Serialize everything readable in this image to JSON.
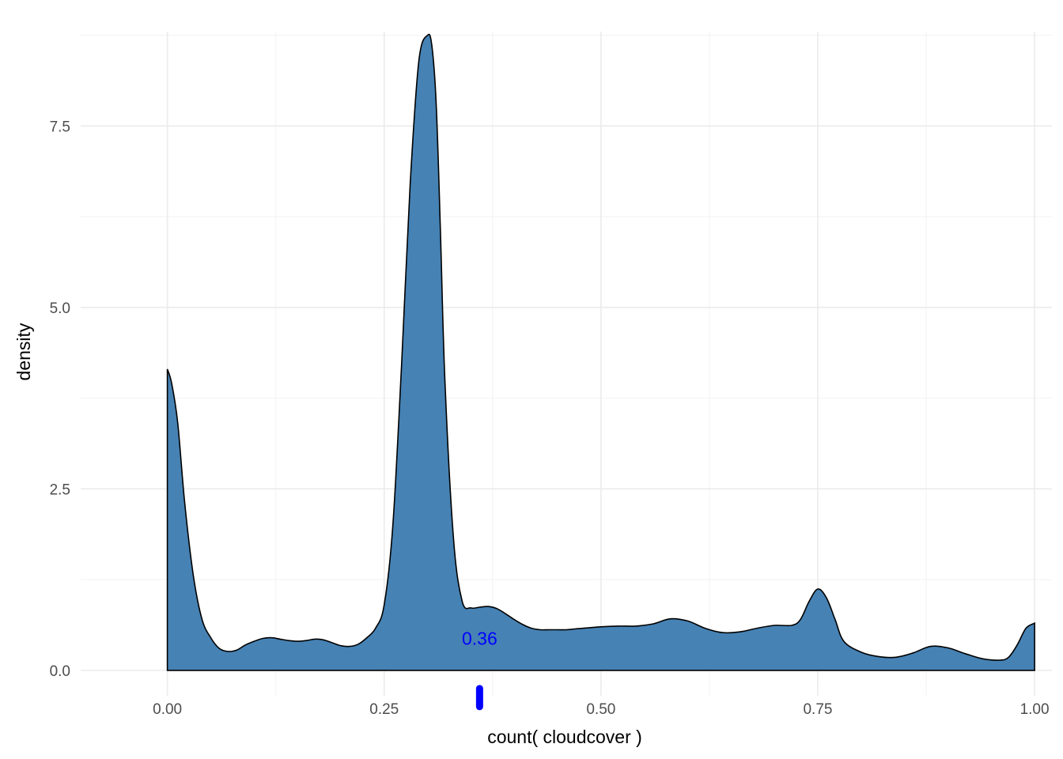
{
  "chart_data": {
    "type": "area",
    "title": "",
    "xlabel": "count( cloudcover )",
    "ylabel": "density",
    "xlim": [
      -0.1,
      1.02
    ],
    "ylim": [
      -0.35,
      8.8
    ],
    "x_ticks": [
      0.0,
      0.25,
      0.5,
      0.75,
      1.0
    ],
    "x_tick_labels": [
      "0.00",
      "0.25",
      "0.50",
      "0.75",
      "1.00"
    ],
    "y_ticks": [
      0.0,
      2.5,
      5.0,
      7.5
    ],
    "y_tick_labels": [
      "0.0",
      "2.5",
      "5.0",
      "7.5"
    ],
    "grid": true,
    "series": [
      {
        "fill": "#4682b4",
        "stroke": "#000000",
        "x": [
          0.0,
          0.005,
          0.012,
          0.02,
          0.03,
          0.04,
          0.05,
          0.06,
          0.07,
          0.08,
          0.09,
          0.1,
          0.11,
          0.12,
          0.13,
          0.14,
          0.15,
          0.16,
          0.17,
          0.18,
          0.19,
          0.2,
          0.21,
          0.22,
          0.23,
          0.24,
          0.25,
          0.26,
          0.27,
          0.28,
          0.29,
          0.3,
          0.305,
          0.31,
          0.315,
          0.32,
          0.33,
          0.34,
          0.35,
          0.36,
          0.37,
          0.38,
          0.39,
          0.4,
          0.41,
          0.42,
          0.43,
          0.44,
          0.45,
          0.46,
          0.47,
          0.48,
          0.5,
          0.52,
          0.54,
          0.56,
          0.58,
          0.6,
          0.62,
          0.64,
          0.66,
          0.68,
          0.7,
          0.72,
          0.73,
          0.74,
          0.75,
          0.76,
          0.77,
          0.78,
          0.8,
          0.82,
          0.84,
          0.86,
          0.88,
          0.9,
          0.92,
          0.94,
          0.96,
          0.97,
          0.98,
          0.99,
          1.0
        ],
        "y": [
          4.15,
          3.95,
          3.4,
          2.3,
          1.3,
          0.7,
          0.45,
          0.3,
          0.26,
          0.28,
          0.35,
          0.4,
          0.44,
          0.45,
          0.43,
          0.41,
          0.4,
          0.41,
          0.43,
          0.42,
          0.38,
          0.34,
          0.33,
          0.36,
          0.45,
          0.58,
          0.9,
          2.0,
          4.2,
          6.7,
          8.4,
          8.75,
          8.6,
          7.8,
          6.0,
          4.0,
          1.8,
          0.95,
          0.86,
          0.87,
          0.88,
          0.85,
          0.78,
          0.7,
          0.63,
          0.58,
          0.56,
          0.56,
          0.56,
          0.56,
          0.57,
          0.58,
          0.6,
          0.61,
          0.61,
          0.64,
          0.71,
          0.68,
          0.58,
          0.52,
          0.53,
          0.58,
          0.62,
          0.62,
          0.7,
          0.95,
          1.12,
          1.0,
          0.7,
          0.4,
          0.25,
          0.19,
          0.18,
          0.24,
          0.33,
          0.31,
          0.23,
          0.16,
          0.14,
          0.18,
          0.35,
          0.58,
          0.65
        ]
      }
    ],
    "marker": {
      "x": 0.36,
      "label": "0.36",
      "color": "#0000ff",
      "label_y": 0.35,
      "rug_y": [
        -0.25,
        -0.5
      ]
    }
  }
}
